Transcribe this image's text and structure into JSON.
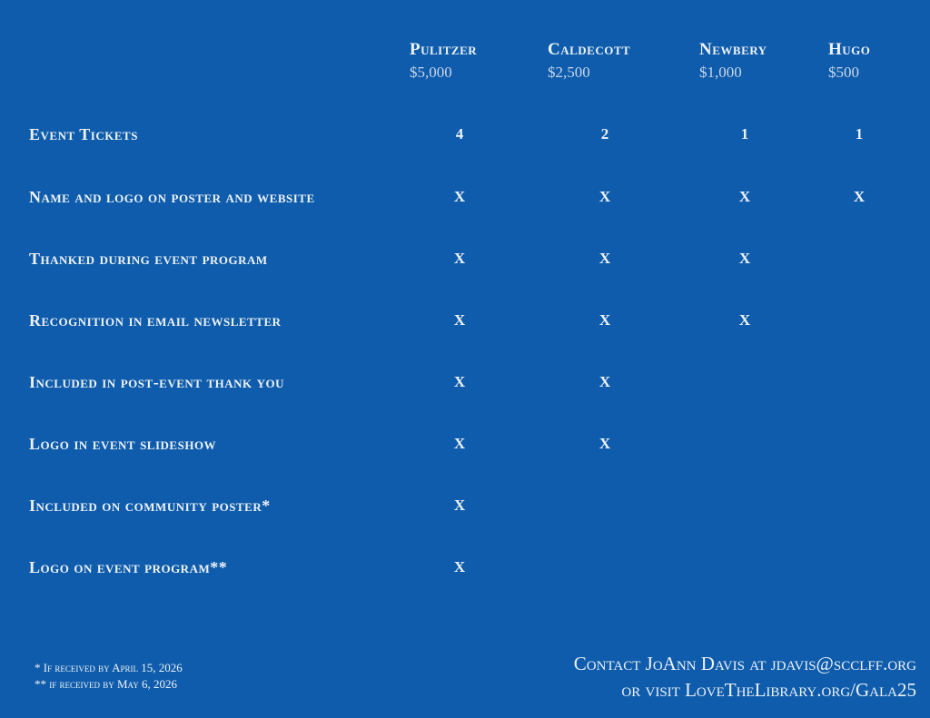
{
  "tiers": [
    {
      "name": "Pulitzer",
      "price": "$5,000"
    },
    {
      "name": "Caldecott",
      "price": "$2,500"
    },
    {
      "name": "Newbery",
      "price": "$1,000"
    },
    {
      "name": "Hugo",
      "price": "$500"
    }
  ],
  "benefits": [
    {
      "label": "Event Tickets",
      "values": [
        "4",
        "2",
        "1",
        "1"
      ]
    },
    {
      "label": "Name and logo on poster and website",
      "values": [
        "X",
        "X",
        "X",
        "X"
      ]
    },
    {
      "label": "Thanked during event program",
      "values": [
        "X",
        "X",
        "X",
        ""
      ]
    },
    {
      "label": "Recognition in email newsletter",
      "values": [
        "X",
        "X",
        "X",
        ""
      ]
    },
    {
      "label": "Included in post-event thank you",
      "values": [
        "X",
        "X",
        "",
        ""
      ]
    },
    {
      "label": "Logo in event slideshow",
      "values": [
        "X",
        "X",
        "",
        ""
      ]
    },
    {
      "label": "Included on community poster*",
      "values": [
        "X",
        "",
        "",
        ""
      ]
    },
    {
      "label": "Logo on event program**",
      "values": [
        "X",
        "",
        "",
        ""
      ]
    }
  ],
  "footnotes": [
    "* If received by April 15, 2026",
    "** if received by May 6, 2026"
  ],
  "contact": [
    "Contact JoAnn Davis at jdavis@scclff.org",
    "or visit LoveTheLibrary.org/Gala25"
  ],
  "colors": {
    "background": "#0e5cab",
    "text": "#eef2f8"
  }
}
